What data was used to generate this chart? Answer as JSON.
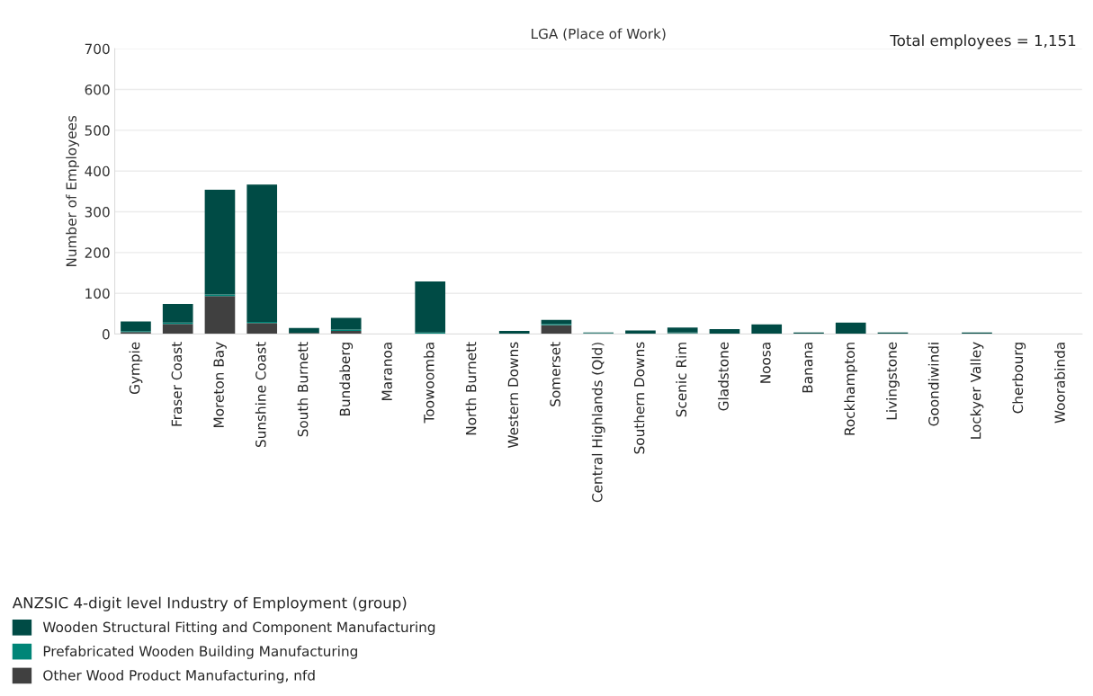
{
  "chart_data": {
    "type": "bar",
    "title": "LGA (Place of Work)",
    "ylabel": "Number of Employees",
    "annotations": [
      "Total employees = 1,151"
    ],
    "categories": [
      "Gympie",
      "Fraser Coast",
      "Moreton Bay",
      "Sunshine Coast",
      "South Burnett",
      "Bundaberg",
      "Maranoa",
      "Toowoomba",
      "North Burnett",
      "Western Downs",
      "Somerset",
      "Central Highlands (Qld)",
      "Southern Downs",
      "Scenic Rim",
      "Gladstone",
      "Noosa",
      "Banana",
      "Rockhampton",
      "Livingstone",
      "Goondiwindi",
      "Lockyer Valley",
      "Cherbourg",
      "Woorabinda"
    ],
    "stacked": true,
    "legend_title": "ANZSIC 4-digit level Industry of Employment (group)",
    "legend": "bottom left",
    "series": [
      {
        "name": "Other Wood Product Manufacturing, nfd",
        "color": "#404040",
        "values": [
          5,
          25,
          93,
          27,
          3,
          8,
          0,
          0,
          0,
          0,
          22,
          0,
          0,
          2,
          0,
          0,
          0,
          0,
          0,
          0,
          0,
          0,
          0
        ]
      },
      {
        "name": "Prefabricated Wooden Building Manufacturing",
        "color": "#008577",
        "values": [
          2,
          3,
          4,
          3,
          null,
          3,
          0,
          4,
          0,
          1,
          3,
          2,
          1,
          2,
          0,
          0,
          1,
          0,
          1,
          0,
          1,
          0,
          0
        ]
      },
      {
        "name": "Wooden Structural Fitting and Component Manufacturing",
        "color": "#004b45",
        "values": [
          24,
          46,
          257,
          337,
          12,
          29,
          0,
          125,
          0,
          7,
          10,
          2,
          8,
          12,
          12,
          24,
          3,
          28,
          3,
          0,
          3,
          0,
          0
        ]
      }
    ],
    "ylim": [
      0,
      700
    ],
    "yticks": [
      0,
      100,
      200,
      300,
      400,
      500,
      600,
      700
    ],
    "grid": "y"
  }
}
